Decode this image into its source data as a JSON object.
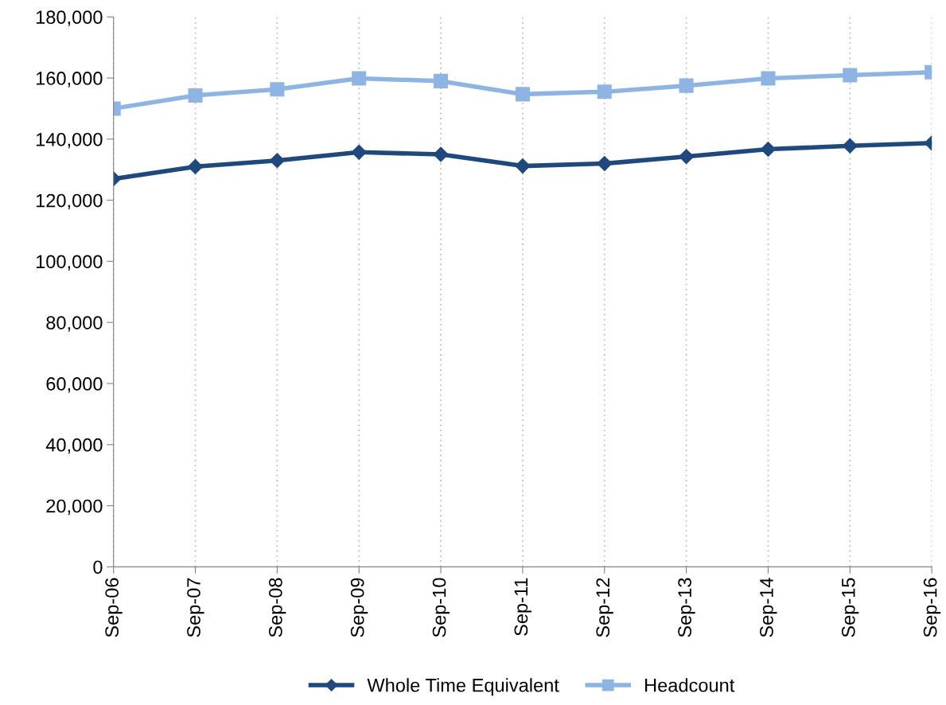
{
  "chart_data": {
    "type": "line",
    "categories": [
      "Sep-06",
      "Sep-07",
      "Sep-08",
      "Sep-09",
      "Sep-10",
      "Sep-11",
      "Sep-12",
      "Sep-13",
      "Sep-14",
      "Sep-15",
      "Sep-16"
    ],
    "series": [
      {
        "name": "Whole Time Equivalent",
        "color": "#1f497d",
        "marker": "diamond",
        "values": [
          127000,
          131000,
          133000,
          135700,
          135000,
          131200,
          132000,
          134300,
          136700,
          137800,
          138700
        ]
      },
      {
        "name": "Headcount",
        "color": "#8eb4e3",
        "marker": "square",
        "values": [
          150000,
          154300,
          156300,
          159900,
          159000,
          154700,
          155500,
          157500,
          159900,
          160900,
          161900
        ]
      }
    ],
    "ylim": [
      0,
      180000
    ],
    "yticks": [
      0,
      {
        "value": 20000,
        "label": "20,000"
      },
      {
        "value": 40000,
        "label": "40,000"
      },
      {
        "value": 60000,
        "label": "60,000"
      },
      {
        "value": 80000,
        "label": "80,000"
      },
      {
        "value": 100000,
        "label": "100,000"
      },
      {
        "value": 120000,
        "label": "120,000"
      },
      {
        "value": 140000,
        "label": "140,000"
      },
      {
        "value": 160000,
        "label": "160,000"
      },
      {
        "value": 180000,
        "label": "180,000"
      }
    ],
    "grid": "x",
    "legend": "bottom",
    "line_style": "solid"
  }
}
